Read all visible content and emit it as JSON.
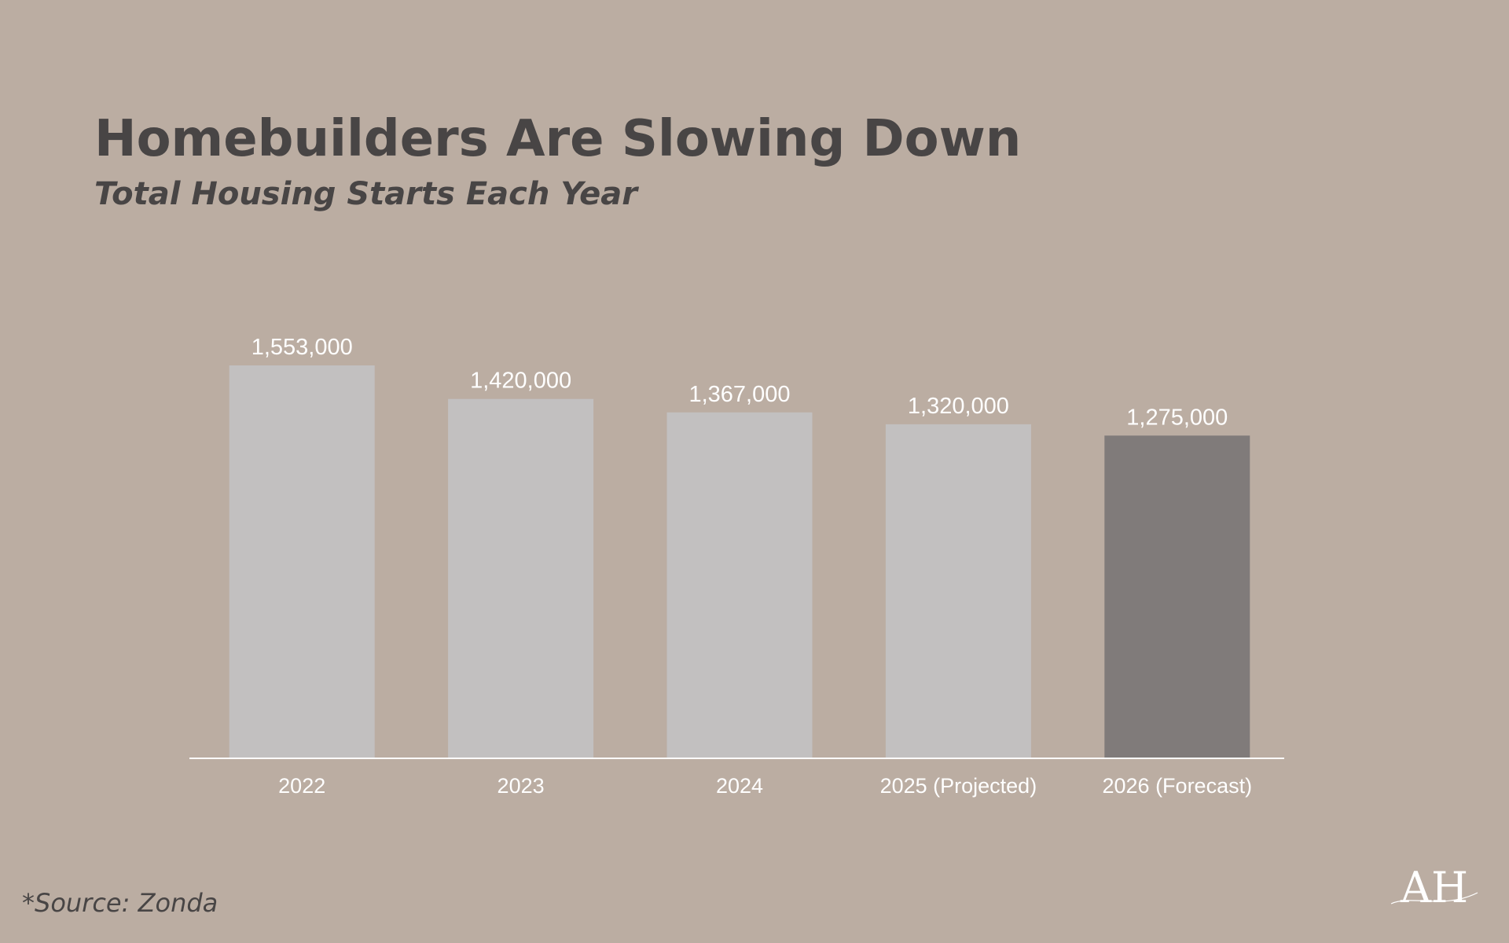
{
  "header": {
    "title": "Homebuilders Are Slowing Down",
    "subtitle": "Total Housing Starts Each Year"
  },
  "footer": {
    "source": "*Source: Zonda"
  },
  "logo": {
    "text": "AH",
    "icon": "ah-monogram-logo"
  },
  "colors": {
    "background": "#bbada2",
    "bar_default": "#c2c0c0",
    "bar_highlight": "#807b7a",
    "labels": "#ffffff",
    "title": "#484545"
  },
  "chart_data": {
    "type": "bar",
    "categories": [
      "2022",
      "2023",
      "2024",
      "2025 (Projected)",
      "2026 (Forecast)"
    ],
    "values": [
      1553000,
      1420000,
      1367000,
      1320000,
      1275000
    ],
    "value_labels": [
      "1,553,000",
      "1,420,000",
      "1,367,000",
      "1,320,000",
      "1,275,000"
    ],
    "highlight_index": 4,
    "title": "Homebuilders Are Slowing Down",
    "subtitle": "Total Housing Starts Each Year",
    "xlabel": "",
    "ylabel": "",
    "ylim": [
      0,
      1553000
    ],
    "grid": false,
    "legend": "none"
  }
}
